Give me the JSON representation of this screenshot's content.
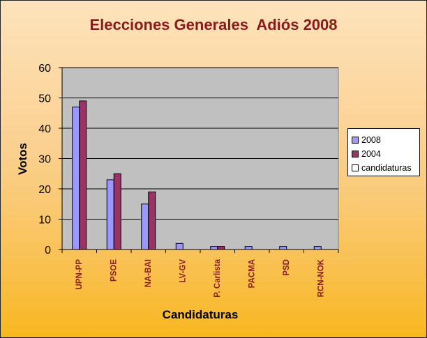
{
  "chart_data": {
    "type": "bar",
    "title": "Elecciones Generales  Adiós 2008",
    "xlabel": "Candidaturas",
    "ylabel": "Votos",
    "categories": [
      "UPN-PP",
      "PSOE",
      "NA-BAI",
      "LV-GV",
      "P. Carlista",
      "PACMA",
      "PSD",
      "RCN-NOK"
    ],
    "series": [
      {
        "name": "2008",
        "values": [
          47,
          23,
          15,
          2,
          1,
          1,
          1,
          1
        ],
        "color": "#9999ff"
      },
      {
        "name": "2004",
        "values": [
          49,
          25,
          19,
          0,
          1,
          0,
          0,
          0
        ],
        "color": "#993366"
      },
      {
        "name": "candidaturas",
        "values": [
          0,
          0,
          0,
          0,
          0,
          0,
          0,
          0
        ],
        "color": "#ffffff"
      }
    ],
    "ylim": [
      0,
      60
    ],
    "yticks": [
      0,
      10,
      20,
      30,
      40,
      50,
      60
    ],
    "grid": true,
    "legend_position": "right",
    "colors": {
      "plot_background": "#c0c0c0",
      "title": "#8b1a1a",
      "category_label": "#8b1a1a"
    }
  }
}
